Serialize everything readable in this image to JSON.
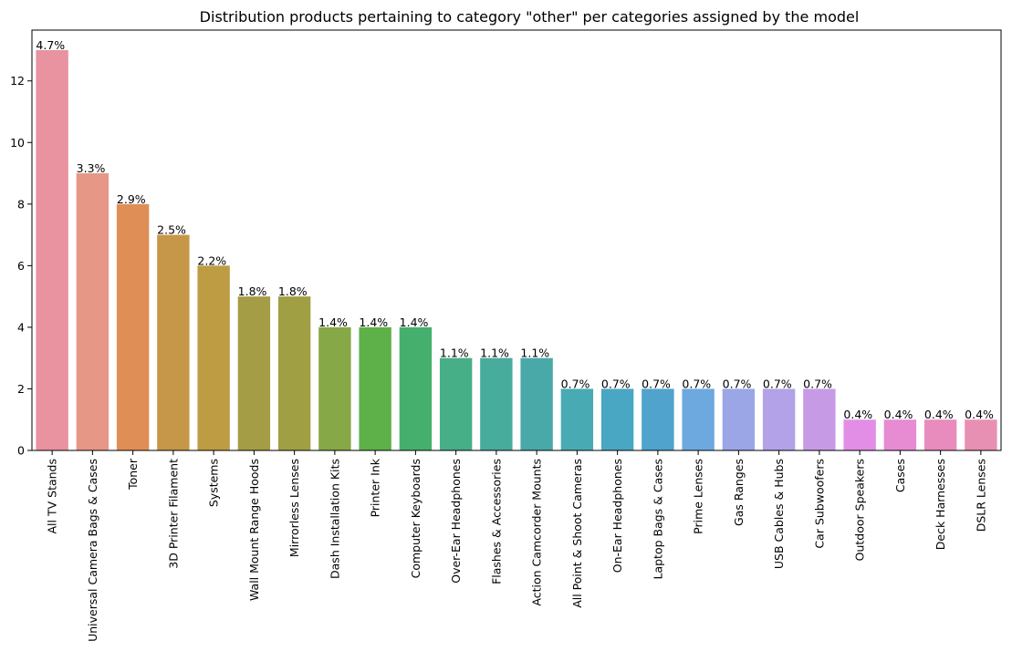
{
  "chart_data": {
    "type": "bar",
    "title": "Distribution products pertaining to category \"other\" per categories assigned by the model",
    "xlabel": "",
    "ylabel": "",
    "ylim": [
      0,
      13.65
    ],
    "yticks": [
      0,
      2,
      4,
      6,
      8,
      10,
      12
    ],
    "grid": false,
    "legend": "none",
    "categories": [
      "All TV Stands",
      "Universal Camera Bags & Cases",
      "Toner",
      "3D Printer Filament",
      "Systems",
      "Wall Mount Range Hoods",
      "Mirrorless Lenses",
      "Dash Installation Kits",
      "Printer Ink",
      "Computer Keyboards",
      "Over-Ear Headphones",
      "Flashes & Accessories",
      "Action Camcorder Mounts",
      "All Point & Shoot Cameras",
      "On-Ear Headphones",
      "Laptop Bags & Cases",
      "Prime Lenses",
      "Gas Ranges",
      "USB Cables & Hubs",
      "Car Subwoofers",
      "Outdoor Speakers",
      "Cases",
      "Deck Harnesses",
      "DSLR Lenses"
    ],
    "values": [
      13,
      9,
      8,
      7,
      6,
      5,
      5,
      4,
      4,
      4,
      3,
      3,
      3,
      2,
      2,
      2,
      2,
      2,
      2,
      2,
      1,
      1,
      1,
      1
    ],
    "data_labels": [
      "4.7%",
      "3.3%",
      "2.9%",
      "2.5%",
      "2.2%",
      "1.8%",
      "1.8%",
      "1.4%",
      "1.4%",
      "1.4%",
      "1.1%",
      "1.1%",
      "1.1%",
      "0.7%",
      "0.7%",
      "0.7%",
      "0.7%",
      "0.7%",
      "0.7%",
      "0.7%",
      "0.4%",
      "0.4%",
      "0.4%",
      "0.4%"
    ],
    "colors": [
      "#e8939f",
      "#e69786",
      "#df8f55",
      "#c69748",
      "#bd9c44",
      "#a59d45",
      "#a09f44",
      "#86a846",
      "#5eb049",
      "#45b06e",
      "#47af88",
      "#48ac9c",
      "#49a9a8",
      "#48abb4",
      "#4aa7c3",
      "#4fa3cc",
      "#6da9df",
      "#9aa6e6",
      "#b3a2e7",
      "#c79ae6",
      "#e28ee6",
      "#e78bd3",
      "#e88bbd",
      "#e890b4"
    ]
  }
}
